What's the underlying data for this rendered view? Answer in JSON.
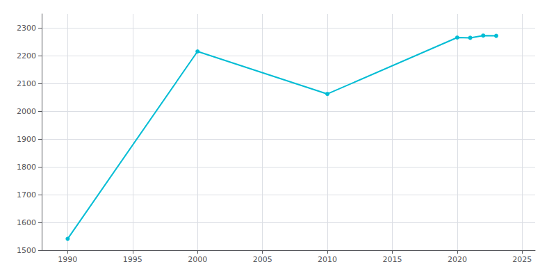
{
  "chart_data": {
    "type": "line",
    "x": [
      1990,
      2000,
      2010,
      2020,
      2021,
      2022,
      2023
    ],
    "values": [
      1541,
      2215,
      2062,
      2265,
      2264,
      2272,
      2271
    ],
    "color": "#00bcd4",
    "marker": "circle",
    "xlim": [
      1988,
      2026
    ],
    "ylim": [
      1500,
      2350
    ],
    "xticks": [
      1990,
      1995,
      2000,
      2005,
      2010,
      2015,
      2020,
      2025
    ],
    "yticks": [
      1500,
      1600,
      1700,
      1800,
      1900,
      2000,
      2100,
      2200,
      2300
    ],
    "grid": true
  }
}
